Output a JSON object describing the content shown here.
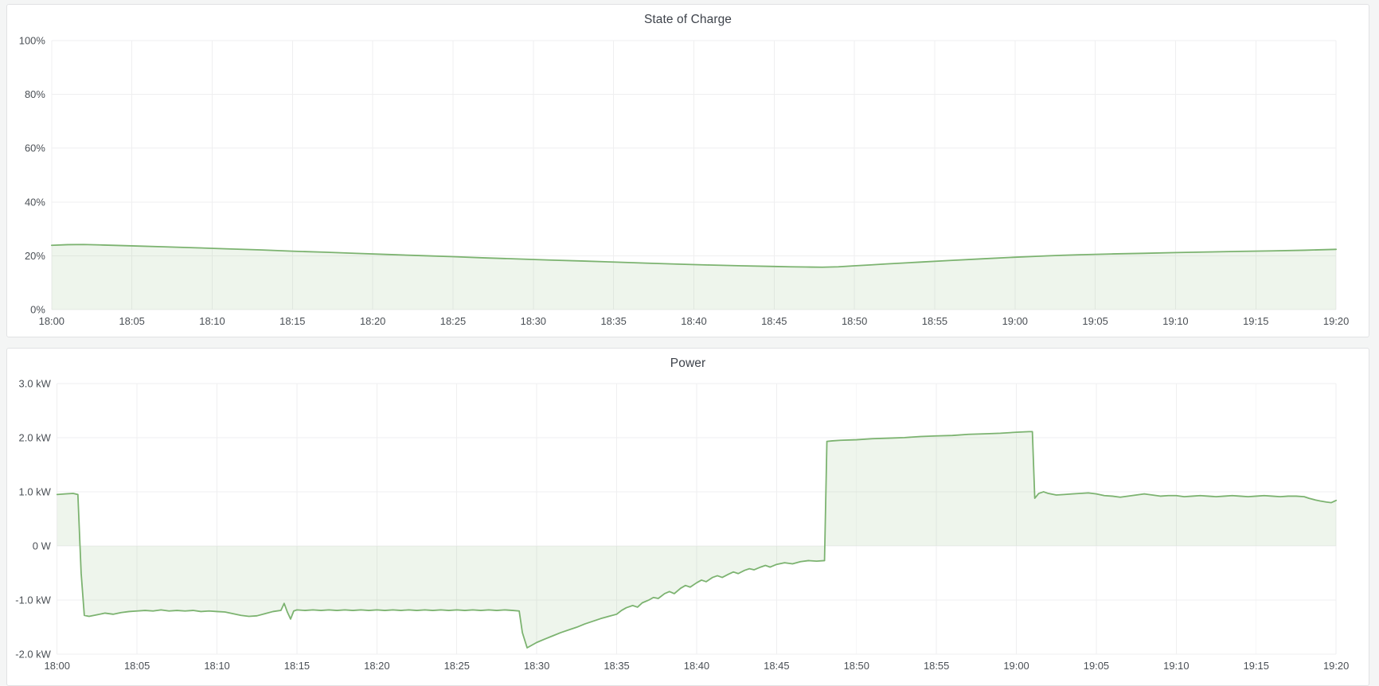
{
  "colors": {
    "page_background": "#f4f5f5",
    "panel_background": "#ffffff",
    "panel_border": "#e1e2e4",
    "grid_line": "#efeff0",
    "tick_text": "#4a4f55",
    "title_text": "#3e434b",
    "series_green": "#7cb370"
  },
  "chart_data": [
    {
      "type": "area",
      "title": "State of Charge",
      "xlabel": "",
      "ylabel": "",
      "x_unit": "minutes after 18:00",
      "xlim": [
        0,
        80
      ],
      "ylim": [
        0,
        100
      ],
      "grid": true,
      "legend": "none",
      "baseline": 0,
      "line_color": "#7cb370",
      "fill_opacity": 0.13,
      "xticks": [
        {
          "m": 0,
          "label": "18:00"
        },
        {
          "m": 5,
          "label": "18:05"
        },
        {
          "m": 10,
          "label": "18:10"
        },
        {
          "m": 15,
          "label": "18:15"
        },
        {
          "m": 20,
          "label": "18:20"
        },
        {
          "m": 25,
          "label": "18:25"
        },
        {
          "m": 30,
          "label": "18:30"
        },
        {
          "m": 35,
          "label": "18:35"
        },
        {
          "m": 40,
          "label": "18:40"
        },
        {
          "m": 45,
          "label": "18:45"
        },
        {
          "m": 50,
          "label": "18:50"
        },
        {
          "m": 55,
          "label": "18:55"
        },
        {
          "m": 60,
          "label": "19:00"
        },
        {
          "m": 65,
          "label": "19:05"
        },
        {
          "m": 70,
          "label": "19:10"
        },
        {
          "m": 75,
          "label": "19:15"
        },
        {
          "m": 80,
          "label": "19:20"
        }
      ],
      "yticks": [
        {
          "v": 0,
          "label": "0%"
        },
        {
          "v": 20,
          "label": "20%"
        },
        {
          "v": 40,
          "label": "40%"
        },
        {
          "v": 60,
          "label": "60%"
        },
        {
          "v": 80,
          "label": "80%"
        },
        {
          "v": 100,
          "label": "100%"
        }
      ],
      "points": [
        [
          0,
          23.9
        ],
        [
          1,
          24.15
        ],
        [
          2,
          24.2
        ],
        [
          3,
          24.05
        ],
        [
          5,
          23.7
        ],
        [
          7,
          23.35
        ],
        [
          9,
          23.0
        ],
        [
          11,
          22.6
        ],
        [
          13,
          22.2
        ],
        [
          15,
          21.75
        ],
        [
          17,
          21.35
        ],
        [
          19,
          20.9
        ],
        [
          21,
          20.5
        ],
        [
          23,
          20.1
        ],
        [
          25,
          19.7
        ],
        [
          27,
          19.25
        ],
        [
          29,
          18.85
        ],
        [
          31,
          18.45
        ],
        [
          33,
          18.1
        ],
        [
          35,
          17.7
        ],
        [
          37,
          17.3
        ],
        [
          39,
          16.95
        ],
        [
          41,
          16.6
        ],
        [
          43,
          16.3
        ],
        [
          45,
          16.05
        ],
        [
          46,
          15.95
        ],
        [
          47,
          15.85
        ],
        [
          48,
          15.8
        ],
        [
          49,
          15.95
        ],
        [
          50,
          16.3
        ],
        [
          51,
          16.65
        ],
        [
          52,
          17.0
        ],
        [
          54,
          17.65
        ],
        [
          56,
          18.3
        ],
        [
          58,
          18.9
        ],
        [
          60,
          19.5
        ],
        [
          61,
          19.75
        ],
        [
          62,
          20.0
        ],
        [
          63,
          20.2
        ],
        [
          64,
          20.4
        ],
        [
          66,
          20.7
        ],
        [
          68,
          20.95
        ],
        [
          70,
          21.2
        ],
        [
          72,
          21.45
        ],
        [
          74,
          21.65
        ],
        [
          76,
          21.85
        ],
        [
          78,
          22.1
        ],
        [
          80,
          22.4
        ]
      ]
    },
    {
      "type": "area",
      "title": "Power",
      "xlabel": "",
      "ylabel": "",
      "x_unit": "minutes after 18:00",
      "y_unit": "kW",
      "xlim": [
        0,
        80
      ],
      "ylim": [
        -2,
        3
      ],
      "grid": true,
      "legend": "none",
      "baseline": 0,
      "line_color": "#7cb370",
      "fill_opacity": 0.13,
      "xticks": [
        {
          "m": 0,
          "label": "18:00"
        },
        {
          "m": 5,
          "label": "18:05"
        },
        {
          "m": 10,
          "label": "18:10"
        },
        {
          "m": 15,
          "label": "18:15"
        },
        {
          "m": 20,
          "label": "18:20"
        },
        {
          "m": 25,
          "label": "18:25"
        },
        {
          "m": 30,
          "label": "18:30"
        },
        {
          "m": 35,
          "label": "18:35"
        },
        {
          "m": 40,
          "label": "18:40"
        },
        {
          "m": 45,
          "label": "18:45"
        },
        {
          "m": 50,
          "label": "18:50"
        },
        {
          "m": 55,
          "label": "18:55"
        },
        {
          "m": 60,
          "label": "19:00"
        },
        {
          "m": 65,
          "label": "19:05"
        },
        {
          "m": 70,
          "label": "19:10"
        },
        {
          "m": 75,
          "label": "19:15"
        },
        {
          "m": 80,
          "label": "19:20"
        }
      ],
      "yticks": [
        {
          "v": -2,
          "label": "-2.0 kW"
        },
        {
          "v": -1,
          "label": "-1.0 kW"
        },
        {
          "v": 0,
          "label": "0 W"
        },
        {
          "v": 1,
          "label": "1.0 kW"
        },
        {
          "v": 2,
          "label": "2.0 kW"
        },
        {
          "v": 3,
          "label": "3.0 kW"
        }
      ],
      "points": [
        [
          0,
          0.95
        ],
        [
          0.5,
          0.96
        ],
        [
          1,
          0.97
        ],
        [
          1.3,
          0.95
        ],
        [
          1.5,
          -0.5
        ],
        [
          1.7,
          -1.28
        ],
        [
          2,
          -1.3
        ],
        [
          2.5,
          -1.27
        ],
        [
          3,
          -1.24
        ],
        [
          3.5,
          -1.26
        ],
        [
          4,
          -1.23
        ],
        [
          4.5,
          -1.21
        ],
        [
          5,
          -1.2
        ],
        [
          5.5,
          -1.19
        ],
        [
          6,
          -1.2
        ],
        [
          6.5,
          -1.18
        ],
        [
          7,
          -1.2
        ],
        [
          7.5,
          -1.19
        ],
        [
          8,
          -1.2
        ],
        [
          8.5,
          -1.19
        ],
        [
          9,
          -1.21
        ],
        [
          9.5,
          -1.2
        ],
        [
          10,
          -1.21
        ],
        [
          10.5,
          -1.22
        ],
        [
          11,
          -1.25
        ],
        [
          11.5,
          -1.28
        ],
        [
          12,
          -1.3
        ],
        [
          12.5,
          -1.29
        ],
        [
          13,
          -1.25
        ],
        [
          13.5,
          -1.21
        ],
        [
          14,
          -1.19
        ],
        [
          14.2,
          -1.06
        ],
        [
          14.4,
          -1.22
        ],
        [
          14.6,
          -1.35
        ],
        [
          14.8,
          -1.2
        ],
        [
          15,
          -1.18
        ],
        [
          15.5,
          -1.19
        ],
        [
          16,
          -1.18
        ],
        [
          16.5,
          -1.19
        ],
        [
          17,
          -1.18
        ],
        [
          17.5,
          -1.19
        ],
        [
          18,
          -1.18
        ],
        [
          18.5,
          -1.19
        ],
        [
          19,
          -1.18
        ],
        [
          19.5,
          -1.19
        ],
        [
          20,
          -1.18
        ],
        [
          20.5,
          -1.19
        ],
        [
          21,
          -1.18
        ],
        [
          21.5,
          -1.19
        ],
        [
          22,
          -1.18
        ],
        [
          22.5,
          -1.19
        ],
        [
          23,
          -1.18
        ],
        [
          23.5,
          -1.19
        ],
        [
          24,
          -1.18
        ],
        [
          24.5,
          -1.19
        ],
        [
          25,
          -1.18
        ],
        [
          25.5,
          -1.19
        ],
        [
          26,
          -1.18
        ],
        [
          26.5,
          -1.19
        ],
        [
          27,
          -1.18
        ],
        [
          27.5,
          -1.19
        ],
        [
          28,
          -1.18
        ],
        [
          28.5,
          -1.19
        ],
        [
          28.9,
          -1.2
        ],
        [
          29.1,
          -1.6
        ],
        [
          29.4,
          -1.88
        ],
        [
          29.7,
          -1.83
        ],
        [
          30,
          -1.78
        ],
        [
          30.5,
          -1.72
        ],
        [
          31,
          -1.66
        ],
        [
          31.5,
          -1.6
        ],
        [
          32,
          -1.55
        ],
        [
          32.5,
          -1.5
        ],
        [
          33,
          -1.44
        ],
        [
          33.5,
          -1.39
        ],
        [
          34,
          -1.34
        ],
        [
          34.5,
          -1.3
        ],
        [
          35,
          -1.26
        ],
        [
          35.3,
          -1.19
        ],
        [
          35.6,
          -1.14
        ],
        [
          36,
          -1.1
        ],
        [
          36.3,
          -1.13
        ],
        [
          36.6,
          -1.05
        ],
        [
          37,
          -1.0
        ],
        [
          37.3,
          -0.95
        ],
        [
          37.6,
          -0.97
        ],
        [
          38,
          -0.88
        ],
        [
          38.3,
          -0.84
        ],
        [
          38.6,
          -0.88
        ],
        [
          39,
          -0.78
        ],
        [
          39.3,
          -0.73
        ],
        [
          39.6,
          -0.76
        ],
        [
          40,
          -0.68
        ],
        [
          40.3,
          -0.63
        ],
        [
          40.6,
          -0.66
        ],
        [
          41,
          -0.58
        ],
        [
          41.3,
          -0.55
        ],
        [
          41.6,
          -0.58
        ],
        [
          42,
          -0.52
        ],
        [
          42.3,
          -0.48
        ],
        [
          42.6,
          -0.51
        ],
        [
          43,
          -0.45
        ],
        [
          43.3,
          -0.42
        ],
        [
          43.6,
          -0.44
        ],
        [
          44,
          -0.39
        ],
        [
          44.3,
          -0.36
        ],
        [
          44.6,
          -0.39
        ],
        [
          45,
          -0.34
        ],
        [
          45.5,
          -0.31
        ],
        [
          46,
          -0.33
        ],
        [
          46.5,
          -0.29
        ],
        [
          47,
          -0.27
        ],
        [
          47.5,
          -0.28
        ],
        [
          48,
          -0.27
        ],
        [
          48.15,
          1.93
        ],
        [
          48.5,
          1.94
        ],
        [
          49,
          1.95
        ],
        [
          50,
          1.96
        ],
        [
          51,
          1.98
        ],
        [
          52,
          1.99
        ],
        [
          53,
          2.0
        ],
        [
          54,
          2.02
        ],
        [
          55,
          2.03
        ],
        [
          56,
          2.04
        ],
        [
          57,
          2.06
        ],
        [
          58,
          2.07
        ],
        [
          59,
          2.08
        ],
        [
          60,
          2.1
        ],
        [
          60.8,
          2.11
        ],
        [
          61,
          2.11
        ],
        [
          61.15,
          0.88
        ],
        [
          61.4,
          0.97
        ],
        [
          61.7,
          1.0
        ],
        [
          62,
          0.97
        ],
        [
          62.5,
          0.94
        ],
        [
          63,
          0.95
        ],
        [
          63.5,
          0.96
        ],
        [
          64,
          0.97
        ],
        [
          64.5,
          0.98
        ],
        [
          65,
          0.96
        ],
        [
          65.5,
          0.93
        ],
        [
          66,
          0.92
        ],
        [
          66.5,
          0.9
        ],
        [
          67,
          0.92
        ],
        [
          67.5,
          0.94
        ],
        [
          68,
          0.96
        ],
        [
          68.5,
          0.94
        ],
        [
          69,
          0.92
        ],
        [
          69.5,
          0.93
        ],
        [
          70,
          0.93
        ],
        [
          70.5,
          0.91
        ],
        [
          71,
          0.92
        ],
        [
          71.5,
          0.93
        ],
        [
          72,
          0.92
        ],
        [
          72.5,
          0.91
        ],
        [
          73,
          0.92
        ],
        [
          73.5,
          0.93
        ],
        [
          74,
          0.92
        ],
        [
          74.5,
          0.91
        ],
        [
          75,
          0.92
        ],
        [
          75.5,
          0.93
        ],
        [
          76,
          0.92
        ],
        [
          76.5,
          0.91
        ],
        [
          77,
          0.92
        ],
        [
          77.5,
          0.92
        ],
        [
          78,
          0.91
        ],
        [
          78.3,
          0.88
        ],
        [
          78.7,
          0.85
        ],
        [
          79,
          0.83
        ],
        [
          79.4,
          0.81
        ],
        [
          79.7,
          0.8
        ],
        [
          80,
          0.84
        ]
      ]
    }
  ]
}
